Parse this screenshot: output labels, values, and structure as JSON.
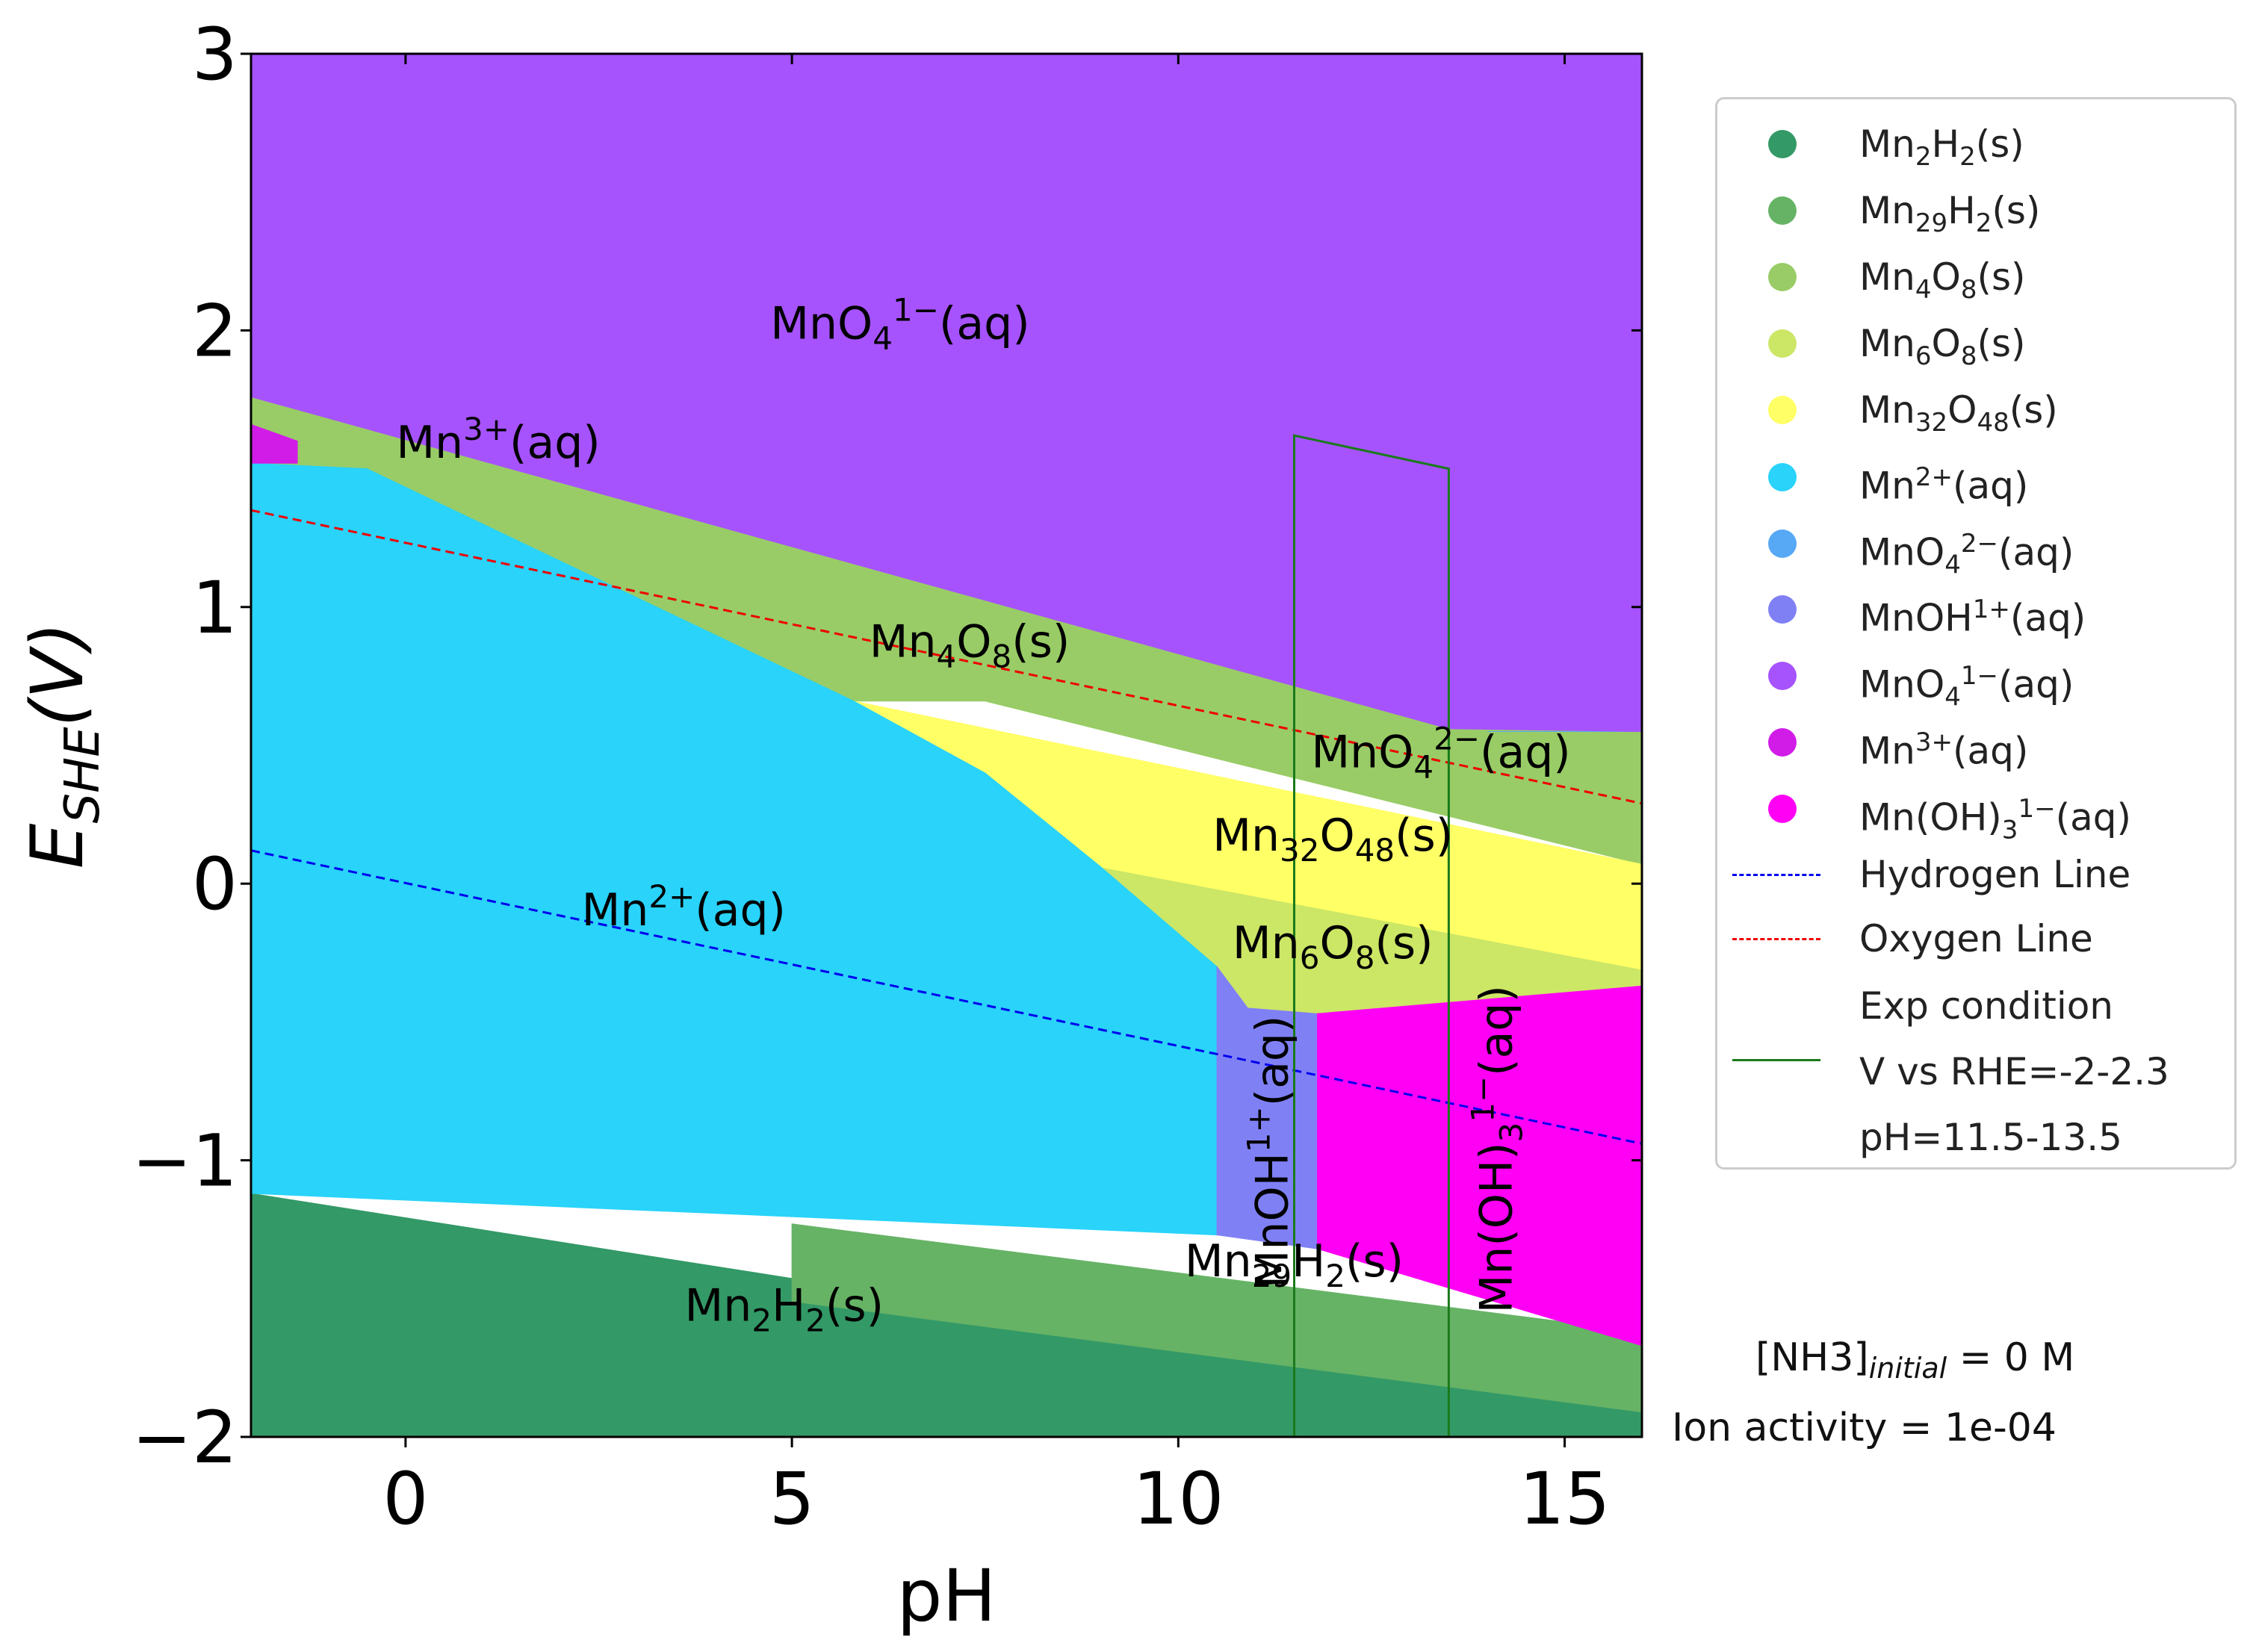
{
  "chart_data": {
    "type": "area",
    "title": "",
    "xlabel": "pH",
    "ylabel": "E_SHE(V)",
    "xlim": [
      -2,
      16
    ],
    "ylim": [
      -2,
      3
    ],
    "xticks": [
      "0",
      "5",
      "10",
      "15"
    ],
    "yticks": [
      "3",
      "2",
      "1",
      "0",
      "−1",
      "−2"
    ],
    "grid": false,
    "legend_position": "right, outside plot",
    "regions": [
      {
        "name": "Mn2H2(s)",
        "label_main": "Mn",
        "label_parts": [
          [
            "2",
            ""
          ],
          [
            "H",
            ""
          ],
          [
            "2",
            ""
          ],
          [
            "(s)",
            ""
          ]
        ],
        "color": "#339966",
        "polygon": [
          [
            -2,
            -1.12
          ],
          [
            16,
            -1.91
          ],
          [
            16,
            -2
          ],
          [
            -2,
            -2
          ]
        ]
      },
      {
        "name": "Mn29H2(s)",
        "color": "#66b366",
        "polygon": [
          [
            5,
            -1.23
          ],
          [
            16,
            -1.62
          ],
          [
            16,
            -1.91
          ],
          [
            5,
            -1.51
          ]
        ]
      },
      {
        "name": "Mn4O8(s)",
        "color": "#99cc66",
        "polygon": [
          [
            -2,
            1.76
          ],
          [
            13.5,
            0.56
          ],
          [
            16,
            0.55
          ],
          [
            16,
            0.07
          ],
          [
            7.5,
            0.66
          ],
          [
            5.8,
            0.66
          ],
          [
            -2,
            1.52
          ]
        ]
      },
      {
        "name": "Mn6O8(s)",
        "color": "#cce666",
        "polygon": [
          [
            9,
            0.06
          ],
          [
            16,
            -0.31
          ],
          [
            16,
            -0.37
          ],
          [
            11.8,
            -0.47
          ],
          [
            10.9,
            -0.45
          ],
          [
            10.5,
            -0.3
          ]
        ]
      },
      {
        "name": "Mn32O48(s)",
        "color": "#ffff66",
        "polygon": [
          [
            5.8,
            0.66
          ],
          [
            16,
            0.07
          ],
          [
            16,
            -0.31
          ],
          [
            9,
            0.06
          ],
          [
            7.5,
            0.4
          ]
        ]
      },
      {
        "name": "Mn2+(aq)",
        "color": "#29d3fa",
        "polygon": [
          [
            -2,
            1.52
          ],
          [
            -0.5,
            1.5
          ],
          [
            5.8,
            0.66
          ],
          [
            7.5,
            0.4
          ],
          [
            9,
            0.06
          ],
          [
            10.5,
            -0.3
          ],
          [
            10.5,
            -1.27
          ],
          [
            -2,
            -1.12
          ]
        ]
      },
      {
        "name": "MnO4 2-(aq)",
        "color": "#57a8f5",
        "polygon": [
          [
            14,
            0.55
          ],
          [
            16,
            0.55
          ],
          [
            16,
            0.55
          ],
          [
            14,
            0.55
          ]
        ]
      },
      {
        "name": "MnOH1+(aq)",
        "color": "#8080f5",
        "polygon": [
          [
            10.5,
            -0.3
          ],
          [
            10.9,
            -0.45
          ],
          [
            11.8,
            -0.47
          ],
          [
            11.8,
            -1.32
          ],
          [
            10.5,
            -1.27
          ]
        ]
      },
      {
        "name": "MnO4 1-(aq)",
        "color": "#a653fd",
        "polygon": [
          [
            -2,
            3
          ],
          [
            16,
            3
          ],
          [
            16,
            0.55
          ],
          [
            13.5,
            0.56
          ],
          [
            -2,
            1.76
          ]
        ]
      },
      {
        "name": "Mn3+(aq)",
        "color": "#d11ce8",
        "polygon": [
          [
            -2,
            1.66
          ],
          [
            -1.4,
            1.6
          ],
          [
            -1.4,
            1.52
          ],
          [
            -2,
            1.52
          ]
        ]
      },
      {
        "name": "Mn(OH)3 1-(aq)",
        "color": "#ff00f5",
        "polygon": [
          [
            11.8,
            -0.47
          ],
          [
            16,
            -0.37
          ],
          [
            16,
            -1.67
          ],
          [
            11.8,
            -1.32
          ]
        ]
      }
    ],
    "series": [
      {
        "name": "Hydrogen Line",
        "style": "dashed",
        "color": "#0000ee",
        "x": [
          -2,
          16
        ],
        "y": [
          0.12,
          -0.94
        ]
      },
      {
        "name": "Oxygen Line",
        "style": "dashed",
        "color": "#ee0000",
        "x": [
          -2,
          16
        ],
        "y": [
          1.35,
          0.29
        ]
      },
      {
        "name": "Exp condition",
        "style": "solid",
        "color": "#1a7a1a",
        "x": [
          11.5,
          11.5,
          13.5,
          13.5
        ],
        "y": [
          -2,
          1.62,
          1.5,
          -2
        ]
      }
    ],
    "legend": [
      {
        "label": "Mn2H2(s)",
        "color": "#339966",
        "kind": "marker"
      },
      {
        "label": "Mn29H2(s)",
        "color": "#66b366",
        "kind": "marker"
      },
      {
        "label": "Mn4O8(s)",
        "color": "#99cc66",
        "kind": "marker"
      },
      {
        "label": "Mn6O8(s)",
        "color": "#cce666",
        "kind": "marker"
      },
      {
        "label": "Mn32O48(s)",
        "color": "#ffff66",
        "kind": "marker"
      },
      {
        "label": "Mn2+(aq)",
        "color": "#29d3fa",
        "kind": "marker"
      },
      {
        "label": "MnO4 2-(aq)",
        "color": "#57a8f5",
        "kind": "marker"
      },
      {
        "label": "MnOH1+(aq)",
        "color": "#8080f5",
        "kind": "marker"
      },
      {
        "label": "MnO4 1-(aq)",
        "color": "#a653fd",
        "kind": "marker"
      },
      {
        "label": "Mn3+(aq)",
        "color": "#d11ce8",
        "kind": "marker"
      },
      {
        "label": "Mn(OH)3 1-(aq)",
        "color": "#ff00f5",
        "kind": "marker"
      },
      {
        "label": "Hydrogen Line",
        "color": "#0000ee",
        "kind": "dashed"
      },
      {
        "label": "Oxygen Line",
        "color": "#ee0000",
        "kind": "dashed"
      },
      {
        "label": "Exp condition\nV vs RHE=-2-2.3\npH=11.5-13.5",
        "color": "#1a7a1a",
        "kind": "solid"
      }
    ],
    "annotations": {
      "nh3": "[NH3]",
      "nh3_sub": "initial",
      "nh3_value": " = 0 M",
      "ion": "Ion activity = 1e-04"
    }
  }
}
